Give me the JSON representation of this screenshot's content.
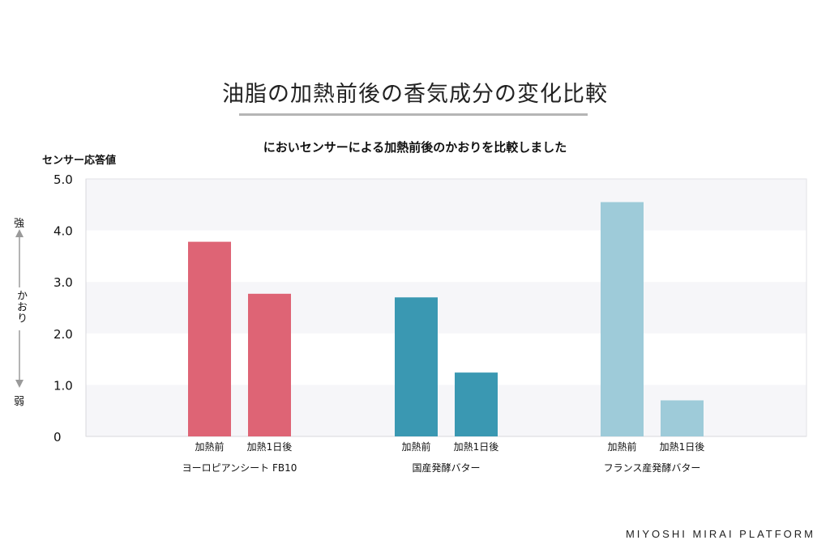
{
  "title": "油脂の加熱前後の香気成分の変化比較",
  "subtitle": "においセンサーによる加熱前後のかおりを比較しました",
  "scale": {
    "strong": "強",
    "mid": "かおり",
    "weak": "弱"
  },
  "brand": "MIYOSHI MIRAI PLATFORM",
  "chart_data": {
    "type": "bar",
    "ylabel": "センサー応答値",
    "ylim": [
      0,
      5
    ],
    "yticks": [
      "0",
      "1.0",
      "2.0",
      "3.0",
      "4.0",
      "5.0"
    ],
    "grid": "alternating horizontal bands",
    "groups": [
      {
        "name": "ヨーロピアンシート FB10",
        "color": "#de6475",
        "bars": [
          {
            "label": "加熱前",
            "value": 3.78
          },
          {
            "label": "加熱1日後",
            "value": 2.77
          }
        ]
      },
      {
        "name": "国産発酵バター",
        "color": "#3a98b2",
        "bars": [
          {
            "label": "加熱前",
            "value": 2.7
          },
          {
            "label": "加熱1日後",
            "value": 1.24
          }
        ]
      },
      {
        "name": "フランス産発酵バター",
        "color": "#9ecbd9",
        "bars": [
          {
            "label": "加熱前",
            "value": 4.55
          },
          {
            "label": "加熱1日後",
            "value": 0.7
          }
        ]
      }
    ]
  }
}
